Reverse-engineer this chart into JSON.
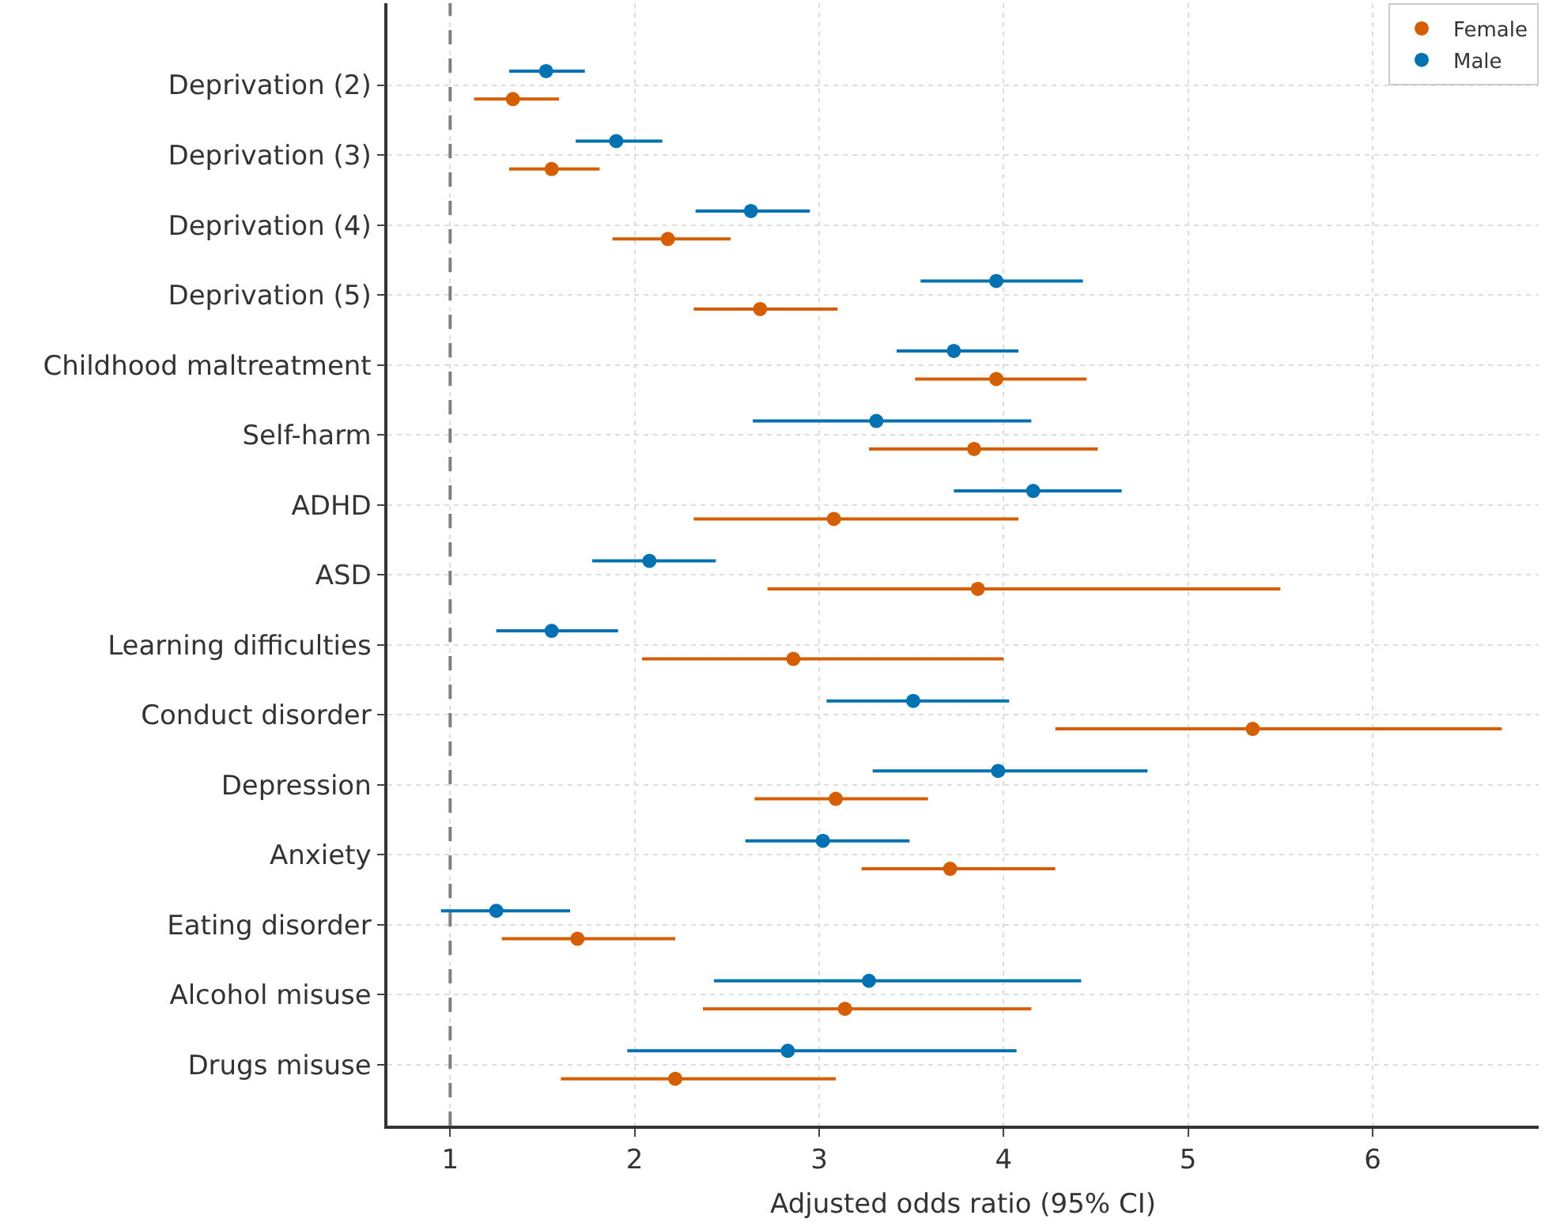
{
  "chart_data": {
    "type": "scatter",
    "orientation": "horizontal",
    "xlabel": "Adjusted odds ratio (95% CI)",
    "categories": [
      "Deprivation (2)",
      "Deprivation (3)",
      "Deprivation (4)",
      "Deprivation (5)",
      "Childhood maltreatment",
      "Self-harm",
      "ADHD",
      "ASD",
      "Learning difficulties",
      "Conduct disorder",
      "Depression",
      "Anxiety",
      "Eating disorder",
      "Alcohol misuse",
      "Drugs misuse"
    ],
    "series": [
      {
        "name": "Female",
        "color": "#d55e00",
        "values": [
          1.34,
          1.55,
          2.18,
          2.68,
          3.96,
          3.84,
          3.08,
          3.86,
          2.86,
          5.35,
          3.09,
          3.71,
          1.69,
          3.14,
          2.22
        ],
        "errors": [
          [
            1.13,
            1.59
          ],
          [
            1.32,
            1.81
          ],
          [
            1.88,
            2.52
          ],
          [
            2.32,
            3.1
          ],
          [
            3.52,
            4.45
          ],
          [
            3.27,
            4.51
          ],
          [
            2.32,
            4.08
          ],
          [
            2.72,
            5.5
          ],
          [
            2.04,
            4.0
          ],
          [
            4.28,
            6.7
          ],
          [
            2.65,
            3.59
          ],
          [
            3.23,
            4.28
          ],
          [
            1.28,
            2.22
          ],
          [
            2.37,
            4.15
          ],
          [
            1.6,
            3.09
          ]
        ]
      },
      {
        "name": "Male",
        "color": "#0072b2",
        "values": [
          1.52,
          1.9,
          2.63,
          3.96,
          3.73,
          3.31,
          4.16,
          2.08,
          1.55,
          3.51,
          3.97,
          3.02,
          1.25,
          3.27,
          2.83
        ],
        "errors": [
          [
            1.32,
            1.73
          ],
          [
            1.68,
            2.15
          ],
          [
            2.33,
            2.95
          ],
          [
            3.55,
            4.43
          ],
          [
            3.42,
            4.08
          ],
          [
            2.64,
            4.15
          ],
          [
            3.73,
            4.64
          ],
          [
            1.77,
            2.44
          ],
          [
            1.25,
            1.91
          ],
          [
            3.04,
            4.03
          ],
          [
            3.29,
            4.78
          ],
          [
            2.6,
            3.49
          ],
          [
            0.95,
            1.65
          ],
          [
            2.43,
            4.42
          ],
          [
            1.96,
            4.07
          ]
        ]
      }
    ],
    "xlim": [
      0.66,
      6.9
    ],
    "xticks": [
      1,
      2,
      3,
      4,
      5,
      6
    ],
    "ref_lines": [
      {
        "axis": "x",
        "value": 1,
        "color": "#808080",
        "line_style": "dashed"
      }
    ],
    "grid": true,
    "legend": "top right",
    "marker": "circle"
  }
}
